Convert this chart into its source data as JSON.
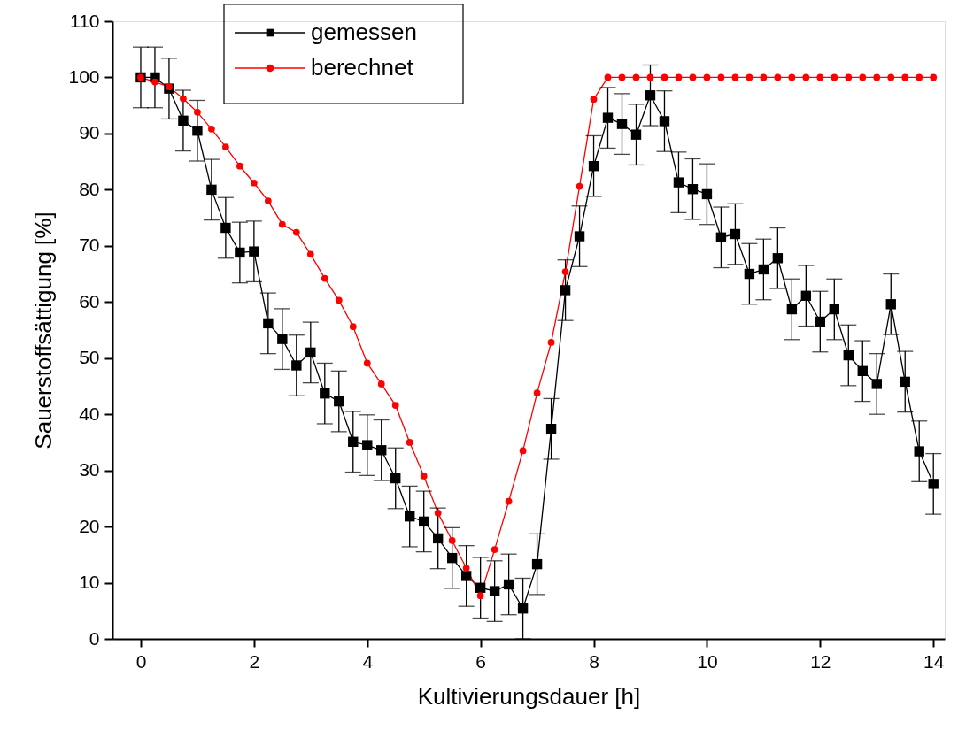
{
  "chart_data": {
    "type": "line",
    "xlabel": "Kultivierungsdauer [h]",
    "ylabel": "Sauerstoffsättigung [%]",
    "xlim": [
      -0.5,
      14.2
    ],
    "ylim": [
      0,
      110
    ],
    "xticks": [
      0,
      2,
      4,
      6,
      8,
      10,
      12,
      14
    ],
    "yticks": [
      0,
      10,
      20,
      30,
      40,
      50,
      60,
      70,
      80,
      90,
      100,
      110
    ],
    "grid": false,
    "legend": "top left",
    "line_style": "solid",
    "series": [
      {
        "name": "gemessen",
        "color": "#000000",
        "marker": "square",
        "x": [
          0,
          0.25,
          0.5,
          0.75,
          1,
          1.25,
          1.5,
          1.75,
          2,
          2.25,
          2.5,
          2.75,
          3,
          3.25,
          3.5,
          3.75,
          4,
          4.25,
          4.5,
          4.75,
          5,
          5.25,
          5.5,
          5.75,
          6,
          6.25,
          6.5,
          6.75,
          7,
          7.25,
          7.5,
          7.75,
          8,
          8.25,
          8.5,
          8.75,
          9,
          9.25,
          9.5,
          9.75,
          10,
          10.25,
          10.5,
          10.75,
          11,
          11.25,
          11.5,
          11.75,
          12,
          12.25,
          12.5,
          12.75,
          13,
          13.25,
          13.5,
          13.75,
          14
        ],
        "values": [
          100,
          100,
          98,
          92.3,
          90.5,
          80,
          73.2,
          68.8,
          69,
          56.2,
          53.4,
          48.7,
          51,
          43.7,
          42.3,
          35.1,
          34.5,
          33.6,
          28.6,
          21.8,
          20.9,
          17.9,
          14.4,
          11.2,
          9.1,
          8.5,
          9.7,
          5.4,
          13.3,
          37.4,
          62.1,
          71.7,
          84.2,
          92.8,
          91.7,
          89.8,
          96.8,
          92.2,
          81.3,
          80.1,
          79.2,
          71.5,
          72.1,
          65,
          65.8,
          67.8,
          58.7,
          61.1,
          56.5,
          58.7,
          50.5,
          47.7,
          45.4,
          59.6,
          45.8,
          33.4,
          27.6
        ],
        "errors": [
          5.4,
          5.4,
          5.4,
          5.4,
          5.4,
          5.4,
          5.4,
          5.4,
          5.4,
          5.4,
          5.4,
          5.4,
          5.4,
          5.4,
          5.4,
          5.4,
          5.4,
          5.4,
          5.4,
          5.4,
          5.4,
          5.4,
          5.4,
          5.4,
          5.4,
          5.4,
          5.4,
          5.4,
          5.4,
          5.4,
          5.4,
          5.4,
          5.4,
          5.4,
          5.4,
          5.4,
          5.4,
          5.4,
          5.4,
          5.4,
          5.4,
          5.4,
          5.4,
          5.4,
          5.4,
          5.4,
          5.4,
          5.4,
          5.4,
          5.4,
          5.4,
          5.4,
          5.4,
          5.4,
          5.4,
          5.4,
          5.4
        ]
      },
      {
        "name": "berechnet",
        "color": "#ff0000",
        "marker": "circle",
        "x": [
          0,
          0.25,
          0.5,
          0.75,
          1,
          1.25,
          1.5,
          1.75,
          2,
          2.25,
          2.5,
          2.75,
          3,
          3.25,
          3.5,
          3.75,
          4,
          4.25,
          4.5,
          4.75,
          5,
          5.25,
          5.5,
          5.75,
          6,
          6.25,
          6.5,
          6.75,
          7,
          7.25,
          7.5,
          7.75,
          8,
          8.25,
          8.5,
          8.75,
          9,
          9.25,
          9.5,
          9.75,
          10,
          10.25,
          10.5,
          10.75,
          11,
          11.25,
          11.5,
          11.75,
          12,
          12.25,
          12.5,
          12.75,
          13,
          13.25,
          13.5,
          13.75,
          14
        ],
        "values": [
          100,
          99.2,
          98.3,
          96.2,
          93.8,
          90.8,
          87.6,
          84.2,
          81.2,
          78,
          73.8,
          72.4,
          68.5,
          64.2,
          60.3,
          55.6,
          49.1,
          45.4,
          41.6,
          35,
          29,
          22.4,
          17.5,
          12.6,
          7.7,
          15.9,
          24.5,
          33.5,
          43.8,
          52.8,
          65.4,
          80.6,
          96.1,
          100,
          100,
          100,
          100,
          100,
          100,
          100,
          100,
          100,
          100,
          100,
          100,
          100,
          100,
          100,
          100,
          100,
          100,
          100,
          100,
          100,
          100,
          100,
          100
        ]
      }
    ]
  }
}
